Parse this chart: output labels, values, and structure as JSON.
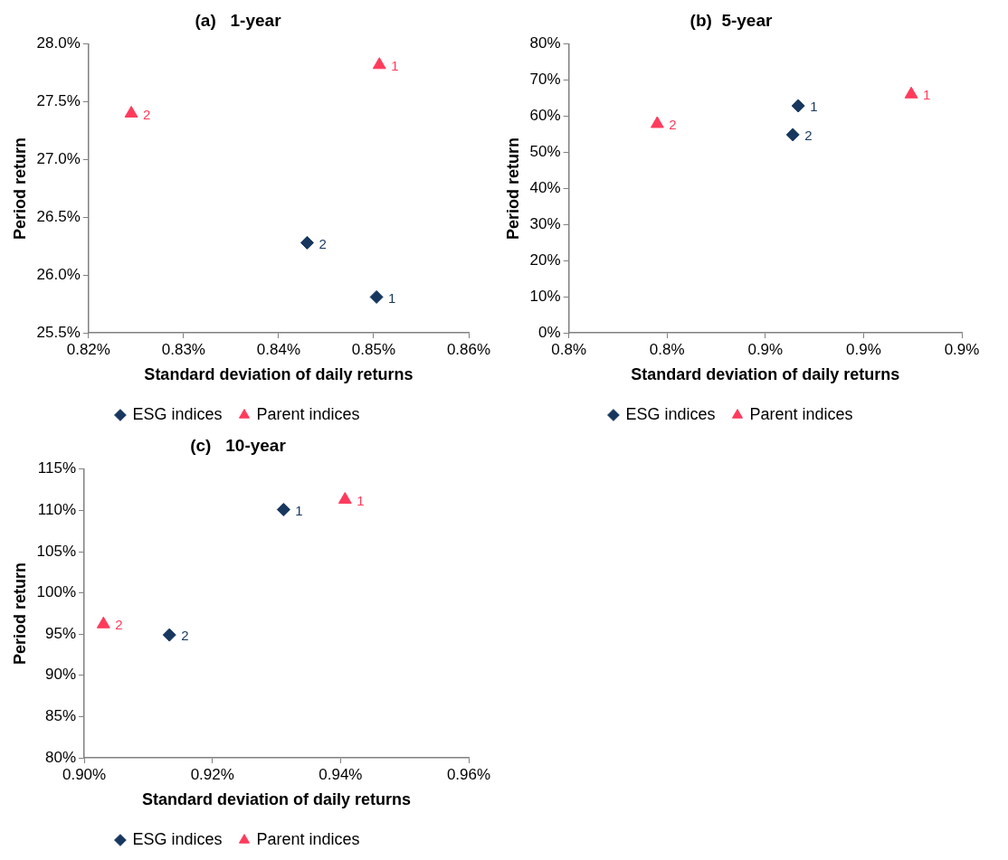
{
  "chart_data": [
    {
      "type": "scatter",
      "title": "(a)   1-year",
      "xlabel": "Standard deviation of daily returns",
      "ylabel": "Period return",
      "legend": "bottom",
      "grid": false,
      "xlim": [
        0.82,
        0.86
      ],
      "xticks": [
        {
          "value": 0.82,
          "label": "0.82%"
        },
        {
          "value": 0.83,
          "label": "0.83%"
        },
        {
          "value": 0.84,
          "label": "0.84%"
        },
        {
          "value": 0.85,
          "label": "0.85%"
        },
        {
          "value": 0.86,
          "label": "0.86%"
        }
      ],
      "ylim": [
        25.5,
        28
      ],
      "yticks": [
        {
          "value": 25.5,
          "label": "25.5%"
        },
        {
          "value": 26,
          "label": "26.0%"
        },
        {
          "value": 26.5,
          "label": "26.5%"
        },
        {
          "value": 27,
          "label": "27.0%"
        },
        {
          "value": 27.5,
          "label": "27.5%"
        },
        {
          "value": 28,
          "label": "28.0%"
        }
      ],
      "series": [
        {
          "name": "ESG indices",
          "color": "#17375e",
          "marker": "diamond",
          "x": [
            0.8503,
            0.843
          ],
          "values": [
            25.81,
            26.28
          ]
        },
        {
          "name": "Parent indices",
          "color": "#ff3b5c",
          "marker": "triangle",
          "x": [
            0.8506,
            0.8245
          ],
          "values": [
            27.82,
            27.4
          ]
        }
      ],
      "annotations": [
        {
          "text": "1",
          "x": 0.8503,
          "y": 25.81
        },
        {
          "text": "2",
          "x": 0.843,
          "y": 26.28
        },
        {
          "text": "1",
          "x": 0.8506,
          "y": 27.82
        },
        {
          "text": "2",
          "x": 0.8245,
          "y": 27.4
        }
      ]
    },
    {
      "type": "scatter",
      "title": "(b)  5-year",
      "xlabel": "Standard deviation of daily returns",
      "ylabel": "Period return",
      "legend": "bottom",
      "grid": false,
      "xlim": [
        0.82,
        0.9
      ],
      "xticks": [
        {
          "value": 0.82,
          "label": "0.8%"
        },
        {
          "value": 0.84,
          "label": "0.8%"
        },
        {
          "value": 0.86,
          "label": "0.9%"
        },
        {
          "value": 0.88,
          "label": "0.9%"
        },
        {
          "value": 0.9,
          "label": "0.9%"
        }
      ],
      "ylim": [
        0,
        80
      ],
      "yticks": [
        {
          "value": 0,
          "label": "0%"
        },
        {
          "value": 10,
          "label": "10%"
        },
        {
          "value": 20,
          "label": "20%"
        },
        {
          "value": 30,
          "label": "30%"
        },
        {
          "value": 40,
          "label": "40%"
        },
        {
          "value": 50,
          "label": "50%"
        },
        {
          "value": 60,
          "label": "60%"
        },
        {
          "value": 70,
          "label": "70%"
        },
        {
          "value": 80,
          "label": "80%"
        }
      ],
      "series": [
        {
          "name": "ESG indices",
          "color": "#17375e",
          "marker": "diamond",
          "x": [
            0.8667,
            0.8656
          ],
          "values": [
            62.9,
            54.9
          ]
        },
        {
          "name": "Parent indices",
          "color": "#ff3b5c",
          "marker": "triangle",
          "x": [
            0.8897,
            0.838
          ],
          "values": [
            66.1,
            57.9
          ]
        }
      ],
      "annotations": [
        {
          "text": "1",
          "x": 0.8667,
          "y": 62.9
        },
        {
          "text": "2",
          "x": 0.8656,
          "y": 54.9
        },
        {
          "text": "1",
          "x": 0.8897,
          "y": 66.1
        },
        {
          "text": "2",
          "x": 0.838,
          "y": 57.9
        }
      ]
    },
    {
      "type": "scatter",
      "title": "(c)   10-year",
      "xlabel": "Standard deviation of daily returns",
      "ylabel": "Period return",
      "legend": "bottom",
      "grid": false,
      "xlim": [
        0.9,
        0.96
      ],
      "xticks": [
        {
          "value": 0.9,
          "label": "0.90%"
        },
        {
          "value": 0.92,
          "label": "0.92%"
        },
        {
          "value": 0.94,
          "label": "0.94%"
        },
        {
          "value": 0.96,
          "label": "0.96%"
        }
      ],
      "ylim": [
        80,
        115
      ],
      "yticks": [
        {
          "value": 80,
          "label": "80%"
        },
        {
          "value": 85,
          "label": "85%"
        },
        {
          "value": 90,
          "label": "90%"
        },
        {
          "value": 95,
          "label": "95%"
        },
        {
          "value": 100,
          "label": "100%"
        },
        {
          "value": 105,
          "label": "105%"
        },
        {
          "value": 110,
          "label": "110%"
        },
        {
          "value": 115,
          "label": "115%"
        }
      ],
      "series": [
        {
          "name": "ESG indices",
          "color": "#17375e",
          "marker": "diamond",
          "x": [
            0.9311,
            0.9133
          ],
          "values": [
            110.1,
            94.9
          ]
        },
        {
          "name": "Parent indices",
          "color": "#ff3b5c",
          "marker": "triangle",
          "x": [
            0.9407,
            0.903
          ],
          "values": [
            111.3,
            96.2
          ]
        }
      ],
      "annotations": [
        {
          "text": "1",
          "x": 0.9311,
          "y": 110.1
        },
        {
          "text": "2",
          "x": 0.9133,
          "y": 94.9
        },
        {
          "text": "1",
          "x": 0.9407,
          "y": 111.3
        },
        {
          "text": "2",
          "x": 0.903,
          "y": 96.2
        }
      ]
    }
  ]
}
